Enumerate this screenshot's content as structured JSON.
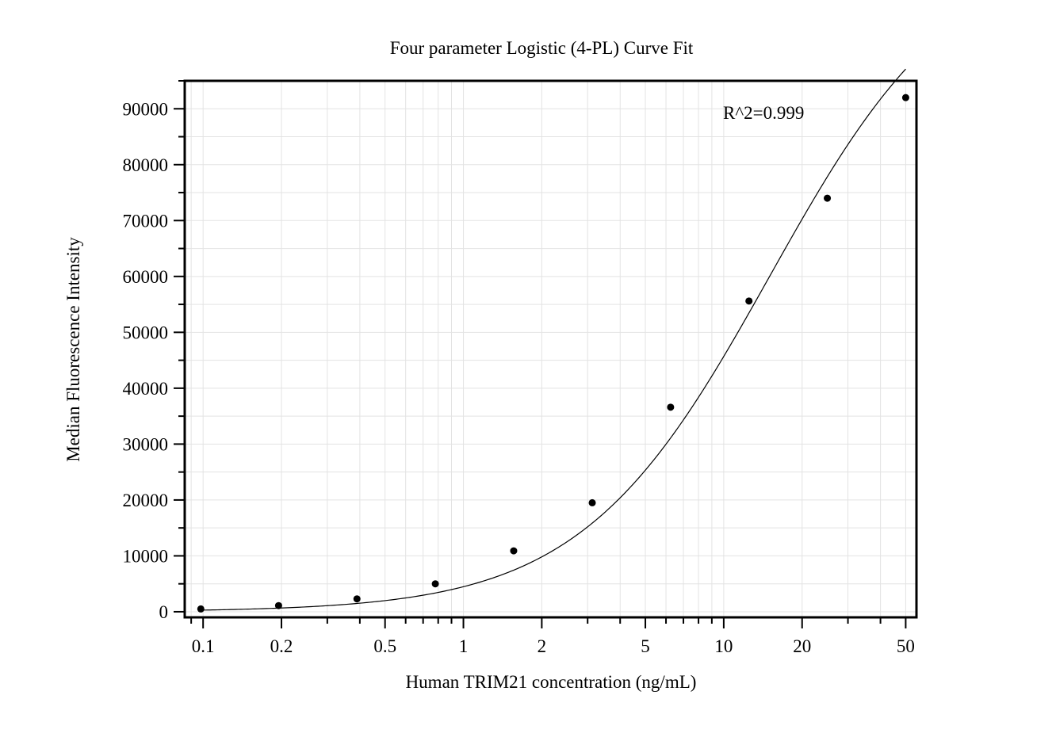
{
  "chart_data": {
    "type": "scatter",
    "title": "Four parameter Logistic (4-PL) Curve Fit",
    "xlabel": "Human TRIM21 concentration (ng/mL)",
    "ylabel": "Median Fluorescence Intensity",
    "annotation": "R^2=0.999",
    "x_scale": "log",
    "xlim": [
      0.085,
      55
    ],
    "ylim": [
      -1000,
      95000
    ],
    "grid": true,
    "x_ticks": [
      0.1,
      0.2,
      0.5,
      1,
      2,
      5,
      10,
      20,
      50
    ],
    "x_tick_labels": [
      "0.1",
      "0.2",
      "0.5",
      "1",
      "2",
      "5",
      "10",
      "20",
      "50"
    ],
    "y_ticks": [
      0,
      10000,
      20000,
      30000,
      40000,
      50000,
      60000,
      70000,
      80000,
      90000
    ],
    "y_tick_labels": [
      "0",
      "10000",
      "20000",
      "30000",
      "40000",
      "50000",
      "60000",
      "70000",
      "80000",
      "90000"
    ],
    "series": [
      {
        "x": [
          0.098,
          0.195,
          0.39,
          0.78,
          1.56,
          3.125,
          6.25,
          12.5,
          25,
          50
        ],
        "y": [
          500,
          1100,
          2300,
          5000,
          10900,
          19500,
          36600,
          55600,
          74000,
          92000
        ]
      }
    ],
    "fit": {
      "model": "4PL",
      "bottom": 0,
      "top": 120000,
      "ec50": 15,
      "hill": 1.2
    }
  }
}
